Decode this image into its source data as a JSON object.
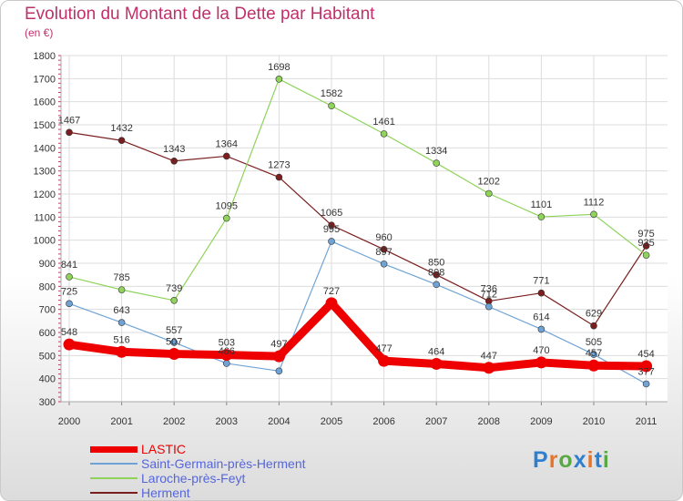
{
  "title": "Evolution du Montant de la Dette par Habitant",
  "subtitle": "(en €)",
  "logo": {
    "text": "Proxiti",
    "colors": [
      "#2f7fd0",
      "#e8732a",
      "#5aa845",
      "#2f7fd0",
      "#e8732a",
      "#2f7fd0",
      "#5aa845"
    ]
  },
  "chart_data": {
    "type": "line",
    "title": "Evolution du Montant de la Dette par Habitant",
    "subtitle": "(en €)",
    "x": [
      "2000",
      "2001",
      "2002",
      "2003",
      "2004",
      "2005",
      "2006",
      "2007",
      "2008",
      "2009",
      "2010",
      "2011"
    ],
    "ylim": [
      300,
      1800
    ],
    "yticks": [
      "300",
      "400",
      "500",
      "600",
      "700",
      "800",
      "900",
      "1000",
      "1100",
      "1200",
      "1300",
      "1400",
      "1500",
      "1600",
      "1700",
      "1800"
    ],
    "grid": true,
    "legend_position": "bottom-left",
    "series": [
      {
        "name": "Herment",
        "color": "#7a1f1f",
        "values": [
          1467,
          1432,
          1343,
          1364,
          1273,
          1065,
          960,
          850,
          736,
          771,
          629,
          975
        ],
        "labels": [
          "1467",
          "1432",
          "1343",
          "1364",
          "1273",
          "1065",
          "960",
          "850",
          "736",
          "771",
          "629",
          "975"
        ]
      },
      {
        "name": "Laroche-près-Feyt",
        "color": "#8fd35a",
        "values": [
          841,
          785,
          739,
          1095,
          1698,
          1582,
          1461,
          1334,
          1202,
          1101,
          1112,
          935
        ],
        "labels": [
          "841",
          "785",
          "739",
          "1095",
          "1698",
          "1582",
          "1461",
          "1334",
          "1202",
          "1101",
          "1112",
          "935"
        ]
      },
      {
        "name": "Saint-Germain-près-Herment",
        "color": "#6fa3d6",
        "values": [
          725,
          643,
          557,
          466,
          433,
          995,
          897,
          808,
          712,
          614,
          505,
          377
        ],
        "labels": [
          "725",
          "643",
          "557",
          "466",
          "433",
          "995",
          "897",
          "808",
          "712",
          "614",
          "505",
          "377"
        ],
        "hidden_labels": [
          4
        ]
      },
      {
        "name": "LASTIC",
        "color": "#ee0000",
        "values": [
          548,
          516,
          507,
          503,
          497,
          727,
          477,
          464,
          447,
          470,
          457,
          454
        ],
        "labels": [
          "548",
          "516",
          "507",
          "503",
          "497",
          "727",
          "477",
          "464",
          "447",
          "470",
          "457",
          "454"
        ]
      }
    ],
    "legend_order": [
      "LASTIC",
      "Saint-Germain-près-Herment",
      "Laroche-près-Feyt",
      "Herment"
    ]
  }
}
